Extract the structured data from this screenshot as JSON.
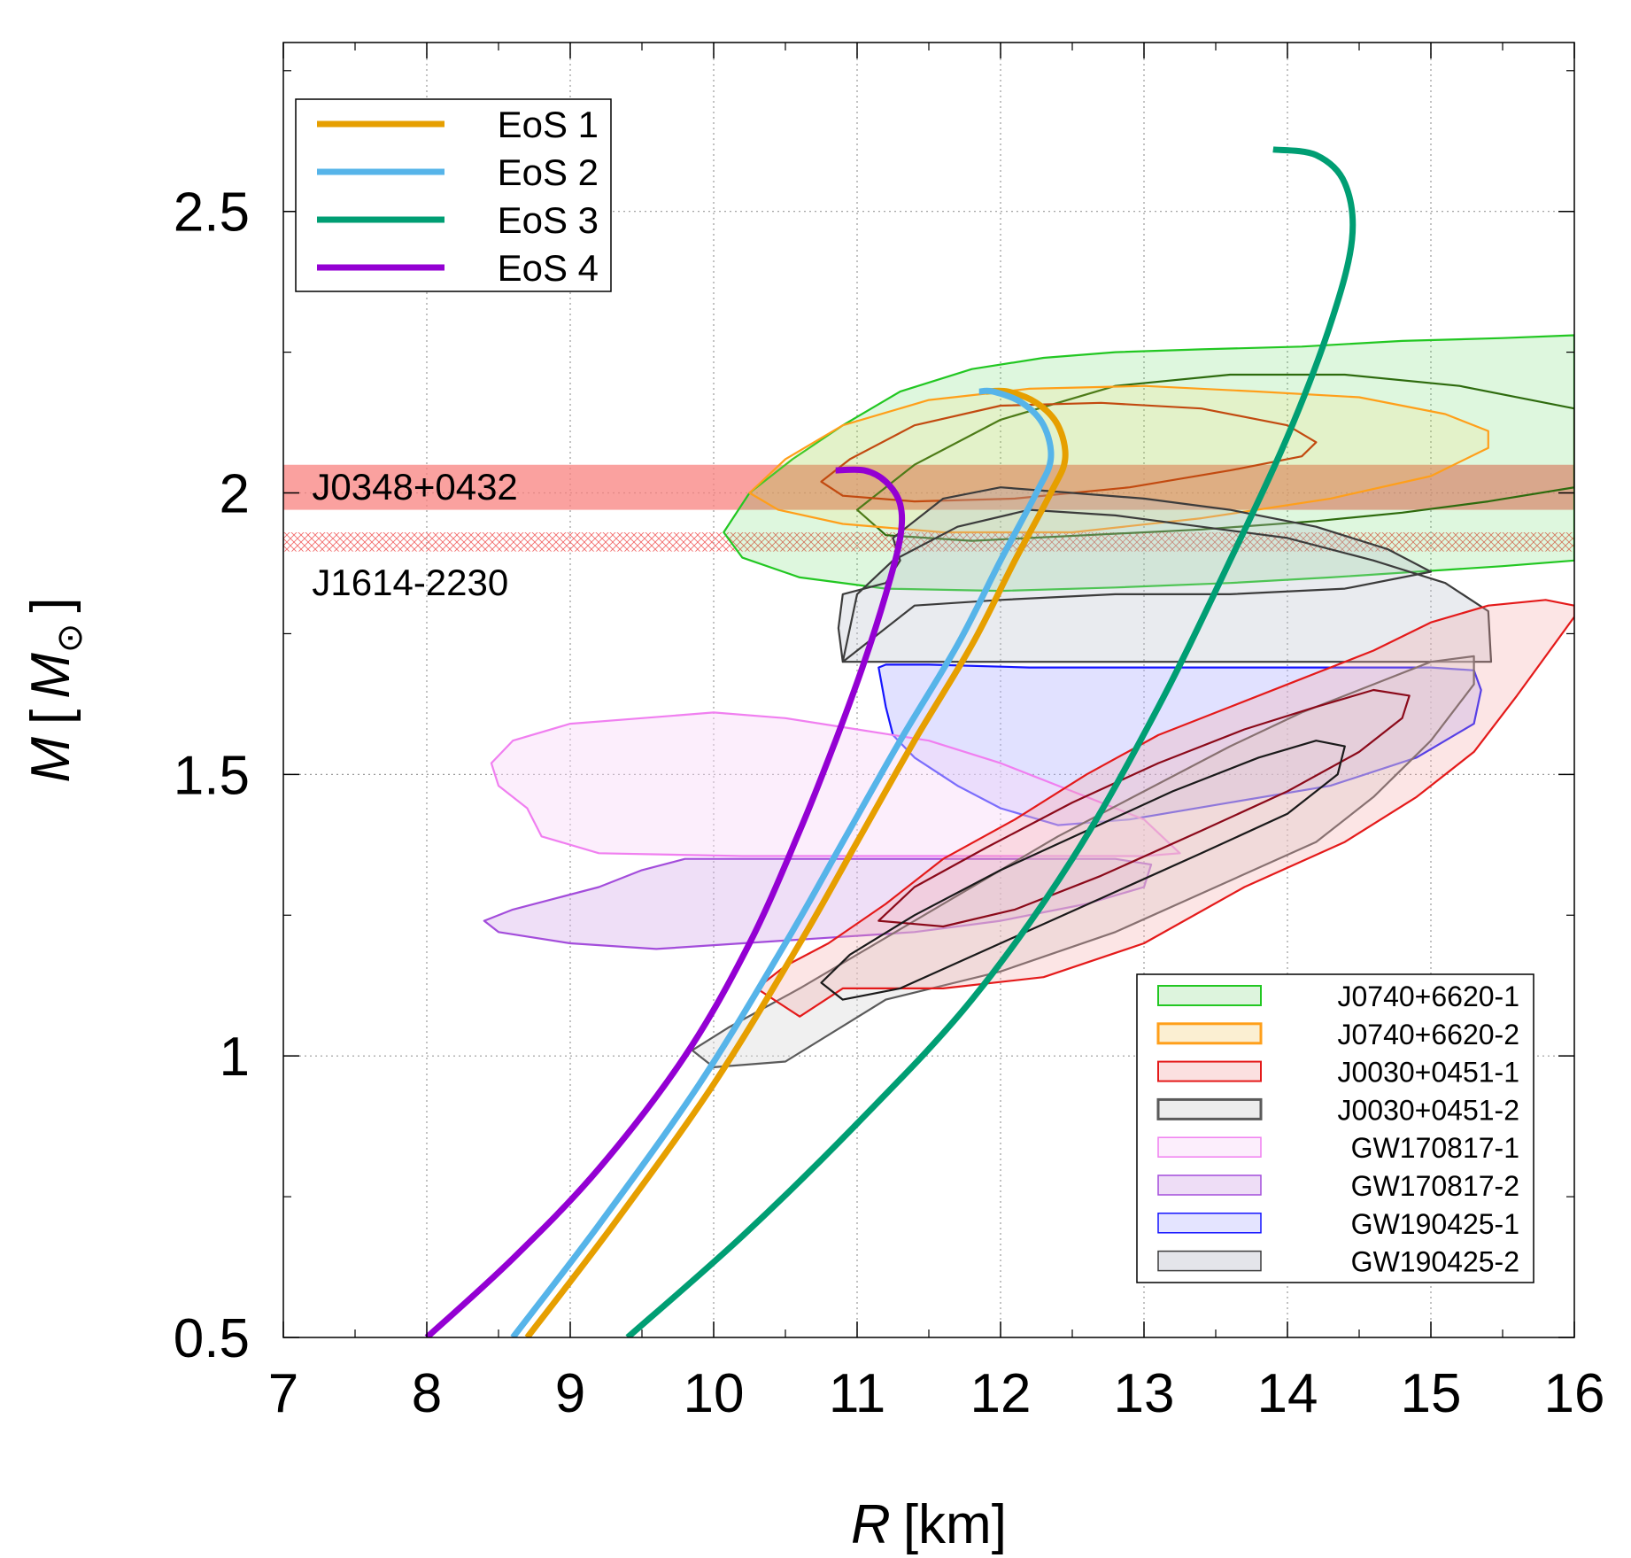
{
  "chart_data": {
    "type": "line",
    "title": "",
    "xlabel": {
      "symbol": "R",
      "unit": "[km]"
    },
    "ylabel": {
      "symbol": "M",
      "open": "[",
      "unit_symbol": "M",
      "sun": "⊙",
      "close": "]"
    },
    "xlim": [
      7,
      16
    ],
    "ylim": [
      0.5,
      2.8
    ],
    "xticks": [
      7,
      8,
      9,
      10,
      11,
      12,
      13,
      14,
      15,
      16
    ],
    "xtick_labels": [
      "7",
      "8",
      "9",
      "10",
      "11",
      "12",
      "13",
      "14",
      "15",
      "16"
    ],
    "yticks": [
      0.5,
      1.0,
      1.5,
      2.0,
      2.5
    ],
    "ytick_labels": [
      "0.5",
      "1",
      "1.5",
      "2",
      "2.5"
    ],
    "grid": true,
    "series": [
      {
        "name": "EoS 1",
        "color": "#E69F00",
        "x": [
          8.7,
          9.3,
          10.0,
          10.6,
          11.0,
          11.4,
          11.8,
          12.1,
          12.35,
          12.45,
          12.4,
          12.25,
          12.05,
          11.9
        ],
        "y": [
          0.5,
          0.7,
          0.95,
          1.2,
          1.38,
          1.56,
          1.73,
          1.88,
          2.0,
          2.06,
          2.12,
          2.16,
          2.18,
          2.18
        ]
      },
      {
        "name": "EoS 2",
        "color": "#56B4E9",
        "x": [
          8.6,
          9.2,
          9.9,
          10.5,
          10.9,
          11.3,
          11.7,
          12.0,
          12.25,
          12.35,
          12.3,
          12.15,
          11.95,
          11.85
        ],
        "y": [
          0.5,
          0.7,
          0.95,
          1.2,
          1.38,
          1.56,
          1.73,
          1.88,
          2.0,
          2.06,
          2.12,
          2.16,
          2.18,
          2.18
        ]
      },
      {
        "name": "EoS 3",
        "color": "#009E73",
        "x": [
          9.4,
          10.2,
          11.0,
          11.8,
          12.5,
          13.1,
          13.6,
          14.0,
          14.3,
          14.45,
          14.4,
          14.2,
          13.9
        ],
        "y": [
          0.5,
          0.68,
          0.88,
          1.1,
          1.35,
          1.62,
          1.88,
          2.1,
          2.3,
          2.45,
          2.55,
          2.6,
          2.61
        ]
      },
      {
        "name": "EoS 4",
        "color": "#9400D3",
        "x": [
          8.0,
          8.6,
          9.2,
          9.8,
          10.25,
          10.6,
          10.85,
          11.05,
          11.2,
          11.3,
          11.3,
          11.2,
          11.05,
          10.85
        ],
        "y": [
          0.5,
          0.64,
          0.8,
          1.0,
          1.2,
          1.4,
          1.56,
          1.7,
          1.82,
          1.92,
          1.98,
          2.02,
          2.04,
          2.04
        ]
      }
    ],
    "bands": [
      {
        "name": "J0348+0432",
        "ymin": 1.97,
        "ymax": 2.05,
        "style": "solid",
        "color": "#F8827F"
      },
      {
        "name": "J1614-2230",
        "ymin": 1.896,
        "ymax": 1.93,
        "style": "hatch",
        "color": "#F26B6B"
      }
    ],
    "regions": [
      {
        "name": "J0740+6620-1",
        "stroke": "#22C722",
        "fill": "#22C722",
        "fill_opacity": 0.15,
        "x": [
          10.07,
          10.25,
          10.55,
          10.9,
          11.3,
          11.8,
          12.3,
          12.8,
          13.4,
          14.1,
          14.8,
          15.5,
          16.0,
          16.0,
          15.5,
          14.9,
          14.3,
          13.6,
          12.8,
          12.0,
          11.2,
          10.6,
          10.2,
          10.07
        ],
        "y": [
          1.93,
          2.0,
          2.06,
          2.12,
          2.18,
          2.22,
          2.24,
          2.25,
          2.255,
          2.26,
          2.27,
          2.275,
          2.28,
          1.88,
          1.87,
          1.86,
          1.85,
          1.84,
          1.832,
          1.826,
          1.83,
          1.85,
          1.885,
          1.93
        ]
      },
      {
        "name": "J0740+6620-1-inner",
        "stroke": "#2E6B0E",
        "fill": "none",
        "fill_opacity": 0,
        "x": [
          11.0,
          11.4,
          12.0,
          12.8,
          13.6,
          14.4,
          15.2,
          16.0,
          16.0,
          15.4,
          14.8,
          14.2,
          13.4,
          12.6,
          11.8,
          11.2,
          11.0
        ],
        "y": [
          1.97,
          2.05,
          2.13,
          2.19,
          2.21,
          2.21,
          2.19,
          2.15,
          2.01,
          1.985,
          1.965,
          1.95,
          1.935,
          1.925,
          1.915,
          1.925,
          1.97
        ]
      },
      {
        "name": "J0740+6620-2",
        "stroke": "#FF9F1A",
        "fill": "#FFD54F",
        "fill_opacity": 0.15,
        "x": [
          10.25,
          10.5,
          10.9,
          11.5,
          12.2,
          13.0,
          13.8,
          14.5,
          15.1,
          15.4,
          15.4,
          15.0,
          14.3,
          13.4,
          12.5,
          11.6,
          10.9,
          10.45,
          10.25
        ],
        "y": [
          2.0,
          2.06,
          2.12,
          2.165,
          2.185,
          2.19,
          2.18,
          2.17,
          2.14,
          2.11,
          2.08,
          2.03,
          1.99,
          1.955,
          1.93,
          1.93,
          1.945,
          1.97,
          2.0
        ]
      },
      {
        "name": "J0740+6620-2-inner",
        "stroke": "#C24A10",
        "fill": "none",
        "fill_opacity": 0,
        "x": [
          10.75,
          10.95,
          11.4,
          12.0,
          12.7,
          13.4,
          14.0,
          14.2,
          14.1,
          13.6,
          12.9,
          12.1,
          11.4,
          10.9,
          10.75
        ],
        "y": [
          2.02,
          2.06,
          2.12,
          2.155,
          2.16,
          2.15,
          2.12,
          2.09,
          2.065,
          2.04,
          2.01,
          1.99,
          1.985,
          1.995,
          2.02
        ]
      },
      {
        "name": "GW190425-2",
        "stroke": "#3C3C3C",
        "fill": "#B7BCCA",
        "fill_opacity": 0.3,
        "x": [
          10.9,
          11.0,
          11.25,
          11.7,
          12.2,
          12.8,
          13.4,
          14.0,
          14.6,
          15.1,
          15.4,
          15.42,
          10.9,
          10.87,
          10.9,
          11.2,
          11.3,
          11.25,
          11.6,
          12.0,
          12.5,
          13.0,
          13.6,
          14.2,
          14.7,
          15.0,
          14.4,
          13.6,
          12.8,
          12.0,
          11.4,
          10.9
        ],
        "y": [
          1.7,
          1.82,
          1.88,
          1.94,
          1.97,
          1.96,
          1.94,
          1.92,
          1.88,
          1.84,
          1.79,
          1.7,
          1.7,
          1.76,
          1.82,
          1.84,
          1.88,
          1.92,
          1.99,
          2.01,
          2.0,
          1.99,
          1.97,
          1.94,
          1.9,
          1.86,
          1.83,
          1.82,
          1.82,
          1.81,
          1.8,
          1.7
        ]
      },
      {
        "name": "GW190425-1",
        "stroke": "#1414FF",
        "fill": "#B3B3FF",
        "fill_opacity": 0.4,
        "x": [
          11.15,
          11.2,
          11.5,
          12.2,
          13.0,
          13.8,
          14.5,
          15.0,
          15.3,
          15.35,
          15.3,
          14.9,
          14.3,
          13.6,
          12.9,
          12.4,
          12.0,
          11.7,
          11.4,
          11.25,
          11.2,
          11.15
        ],
        "y": [
          1.69,
          1.695,
          1.695,
          1.69,
          1.69,
          1.69,
          1.69,
          1.69,
          1.685,
          1.65,
          1.59,
          1.53,
          1.48,
          1.45,
          1.42,
          1.41,
          1.44,
          1.48,
          1.53,
          1.57,
          1.62,
          1.69
        ]
      },
      {
        "name": "GW170817-1",
        "stroke": "#F07FF0",
        "fill": "#F9D9F9",
        "fill_opacity": 0.45,
        "x": [
          8.45,
          8.6,
          9.0,
          9.5,
          10.0,
          10.5,
          11.0,
          11.5,
          12.0,
          12.5,
          13.0,
          13.25,
          13.0,
          12.2,
          11.2,
          10.2,
          9.2,
          8.8,
          8.7,
          8.5,
          8.45
        ],
        "y": [
          1.52,
          1.56,
          1.59,
          1.6,
          1.61,
          1.6,
          1.58,
          1.56,
          1.52,
          1.47,
          1.42,
          1.36,
          1.355,
          1.355,
          1.355,
          1.355,
          1.36,
          1.39,
          1.44,
          1.48,
          1.52
        ]
      },
      {
        "name": "GW170817-2",
        "stroke": "#A34DDB",
        "fill": "#D6AEEB",
        "fill_opacity": 0.4,
        "x": [
          8.4,
          8.6,
          8.9,
          9.2,
          9.5,
          9.8,
          10.3,
          11.0,
          11.6,
          12.2,
          12.8,
          13.05,
          13.0,
          12.6,
          12.0,
          11.4,
          10.8,
          10.2,
          9.6,
          9.0,
          8.5,
          8.4
        ],
        "y": [
          1.24,
          1.26,
          1.28,
          1.3,
          1.33,
          1.35,
          1.35,
          1.35,
          1.35,
          1.35,
          1.35,
          1.34,
          1.3,
          1.27,
          1.24,
          1.22,
          1.21,
          1.2,
          1.19,
          1.2,
          1.22,
          1.24
        ]
      },
      {
        "name": "J0030+0451-2",
        "stroke": "#5A5A5A",
        "fill": "#D9D9D9",
        "fill_opacity": 0.4,
        "x": [
          9.85,
          10.1,
          10.6,
          11.2,
          11.8,
          12.4,
          13.0,
          13.6,
          14.1,
          14.6,
          15.0,
          15.3,
          15.3,
          15.0,
          14.6,
          14.2,
          13.5,
          12.8,
          12.0,
          11.2,
          10.5,
          10.0,
          9.85
        ],
        "y": [
          1.01,
          1.05,
          1.12,
          1.21,
          1.3,
          1.39,
          1.47,
          1.55,
          1.61,
          1.66,
          1.7,
          1.71,
          1.66,
          1.56,
          1.46,
          1.38,
          1.3,
          1.22,
          1.15,
          1.1,
          0.99,
          0.98,
          1.01
        ]
      },
      {
        "name": "J0030+0451-1",
        "stroke": "#E41A1A",
        "fill": "#F6A8A8",
        "fill_opacity": 0.3,
        "x": [
          10.3,
          10.5,
          10.8,
          11.2,
          11.6,
          12.1,
          12.6,
          13.1,
          13.6,
          14.1,
          14.6,
          15.0,
          15.4,
          15.8,
          16.0,
          16.0,
          15.6,
          15.3,
          14.9,
          14.4,
          13.7,
          13.0,
          12.3,
          11.6,
          10.9,
          10.6,
          10.3
        ],
        "y": [
          1.12,
          1.16,
          1.2,
          1.27,
          1.35,
          1.42,
          1.5,
          1.57,
          1.62,
          1.67,
          1.72,
          1.77,
          1.8,
          1.81,
          1.8,
          1.78,
          1.64,
          1.54,
          1.46,
          1.38,
          1.3,
          1.2,
          1.14,
          1.12,
          1.12,
          1.07,
          1.12
        ]
      },
      {
        "name": "J0030+0451-1-inner",
        "stroke": "#8B0A1A",
        "fill": "none",
        "fill_opacity": 0,
        "x": [
          11.15,
          11.4,
          11.9,
          12.5,
          13.1,
          13.7,
          14.2,
          14.6,
          14.85,
          14.8,
          14.5,
          14.0,
          13.4,
          12.7,
          12.1,
          11.6,
          11.15
        ],
        "y": [
          1.24,
          1.3,
          1.37,
          1.45,
          1.52,
          1.58,
          1.62,
          1.65,
          1.64,
          1.6,
          1.54,
          1.47,
          1.4,
          1.32,
          1.26,
          1.23,
          1.24
        ]
      },
      {
        "name": "J0030+0451-2-inner",
        "stroke": "#1A1A1A",
        "fill": "none",
        "fill_opacity": 0,
        "x": [
          10.75,
          10.95,
          11.4,
          12.0,
          12.6,
          13.2,
          13.8,
          14.2,
          14.4,
          14.35,
          14.0,
          13.4,
          12.7,
          12.0,
          11.3,
          10.9,
          10.75
        ],
        "y": [
          1.13,
          1.18,
          1.25,
          1.33,
          1.4,
          1.47,
          1.53,
          1.56,
          1.55,
          1.5,
          1.43,
          1.36,
          1.28,
          1.2,
          1.12,
          1.1,
          1.13
        ]
      }
    ],
    "annotations": [
      {
        "text": "J0348+0432",
        "x": 7.2,
        "y": 2.01
      },
      {
        "text": "J1614-2230",
        "x": 7.2,
        "y": 1.84
      }
    ],
    "legend_eos": {
      "position": "top-left",
      "entries": [
        {
          "label": "EoS 1",
          "color": "#E69F00"
        },
        {
          "label": "EoS 2",
          "color": "#56B4E9"
        },
        {
          "label": "EoS 3",
          "color": "#009E73"
        },
        {
          "label": "EoS 4",
          "color": "#9400D3"
        }
      ]
    },
    "legend_obs": {
      "position": "bottom-right",
      "entries": [
        {
          "label": "J0740+6620-1",
          "stroke": "#22C722",
          "fill": "#DDF4DD",
          "weight": 2
        },
        {
          "label": "J0740+6620-2",
          "stroke": "#FF9F1A",
          "fill": "#FBEFD2",
          "weight": 3
        },
        {
          "label": "J0030+0451-1",
          "stroke": "#E41A1A",
          "fill": "#FBE0E0",
          "weight": 2
        },
        {
          "label": "J0030+0451-2",
          "stroke": "#5A5A5A",
          "fill": "#ECECEC",
          "weight": 3
        },
        {
          "label": "GW170817-1",
          "stroke": "#F07FF0",
          "fill": "#FCEEFC",
          "weight": 1.5
        },
        {
          "label": "GW170817-2",
          "stroke": "#A34DDB",
          "fill": "#EEDDF6",
          "weight": 1.5
        },
        {
          "label": "GW190425-1",
          "stroke": "#1414FF",
          "fill": "#E4E4FF",
          "weight": 1.5
        },
        {
          "label": "GW190425-2",
          "stroke": "#3C3C3C",
          "fill": "#E4E5EA",
          "weight": 1.5
        }
      ]
    }
  }
}
